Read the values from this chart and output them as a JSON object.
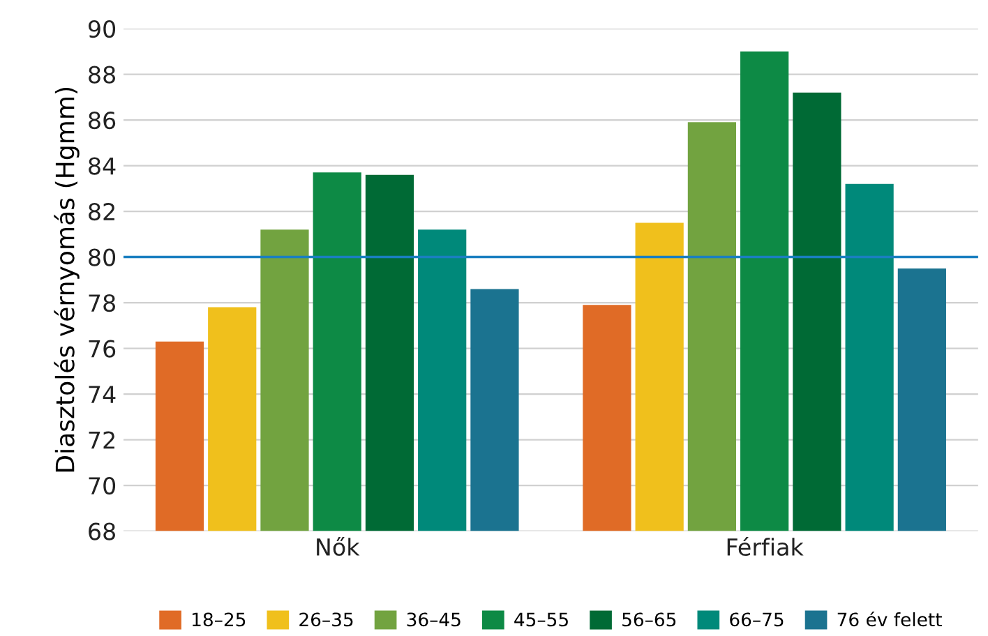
{
  "chart_data": {
    "type": "bar",
    "ylabel": "Diasztolés vérnyomás (Hgmm)",
    "categories": [
      "Nők",
      "Férfiak"
    ],
    "series": [
      {
        "name": "18–25",
        "color": "#e06b26",
        "values": [
          76.3,
          77.9
        ]
      },
      {
        "name": "26–35",
        "color": "#f0c01c",
        "values": [
          77.8,
          81.5
        ]
      },
      {
        "name": "36–45",
        "color": "#72a340",
        "values": [
          81.2,
          85.9
        ]
      },
      {
        "name": "45–55",
        "color": "#0d8a45",
        "values": [
          83.7,
          89.0
        ]
      },
      {
        "name": "56–65",
        "color": "#006a35",
        "values": [
          83.6,
          87.2
        ]
      },
      {
        "name": "66–75",
        "color": "#00897a",
        "values": [
          81.2,
          83.2
        ]
      },
      {
        "name": "76 év felett",
        "color": "#1b7390",
        "values": [
          78.6,
          79.5
        ]
      }
    ],
    "ylim": [
      68,
      90
    ],
    "yticks": [
      68,
      70,
      72,
      74,
      76,
      78,
      80,
      82,
      84,
      86,
      88,
      90
    ],
    "ref_lines": [
      {
        "axis": "y",
        "value": 80,
        "color": "#1a7fc0"
      }
    ],
    "grid": "y",
    "legend": "bottom"
  }
}
